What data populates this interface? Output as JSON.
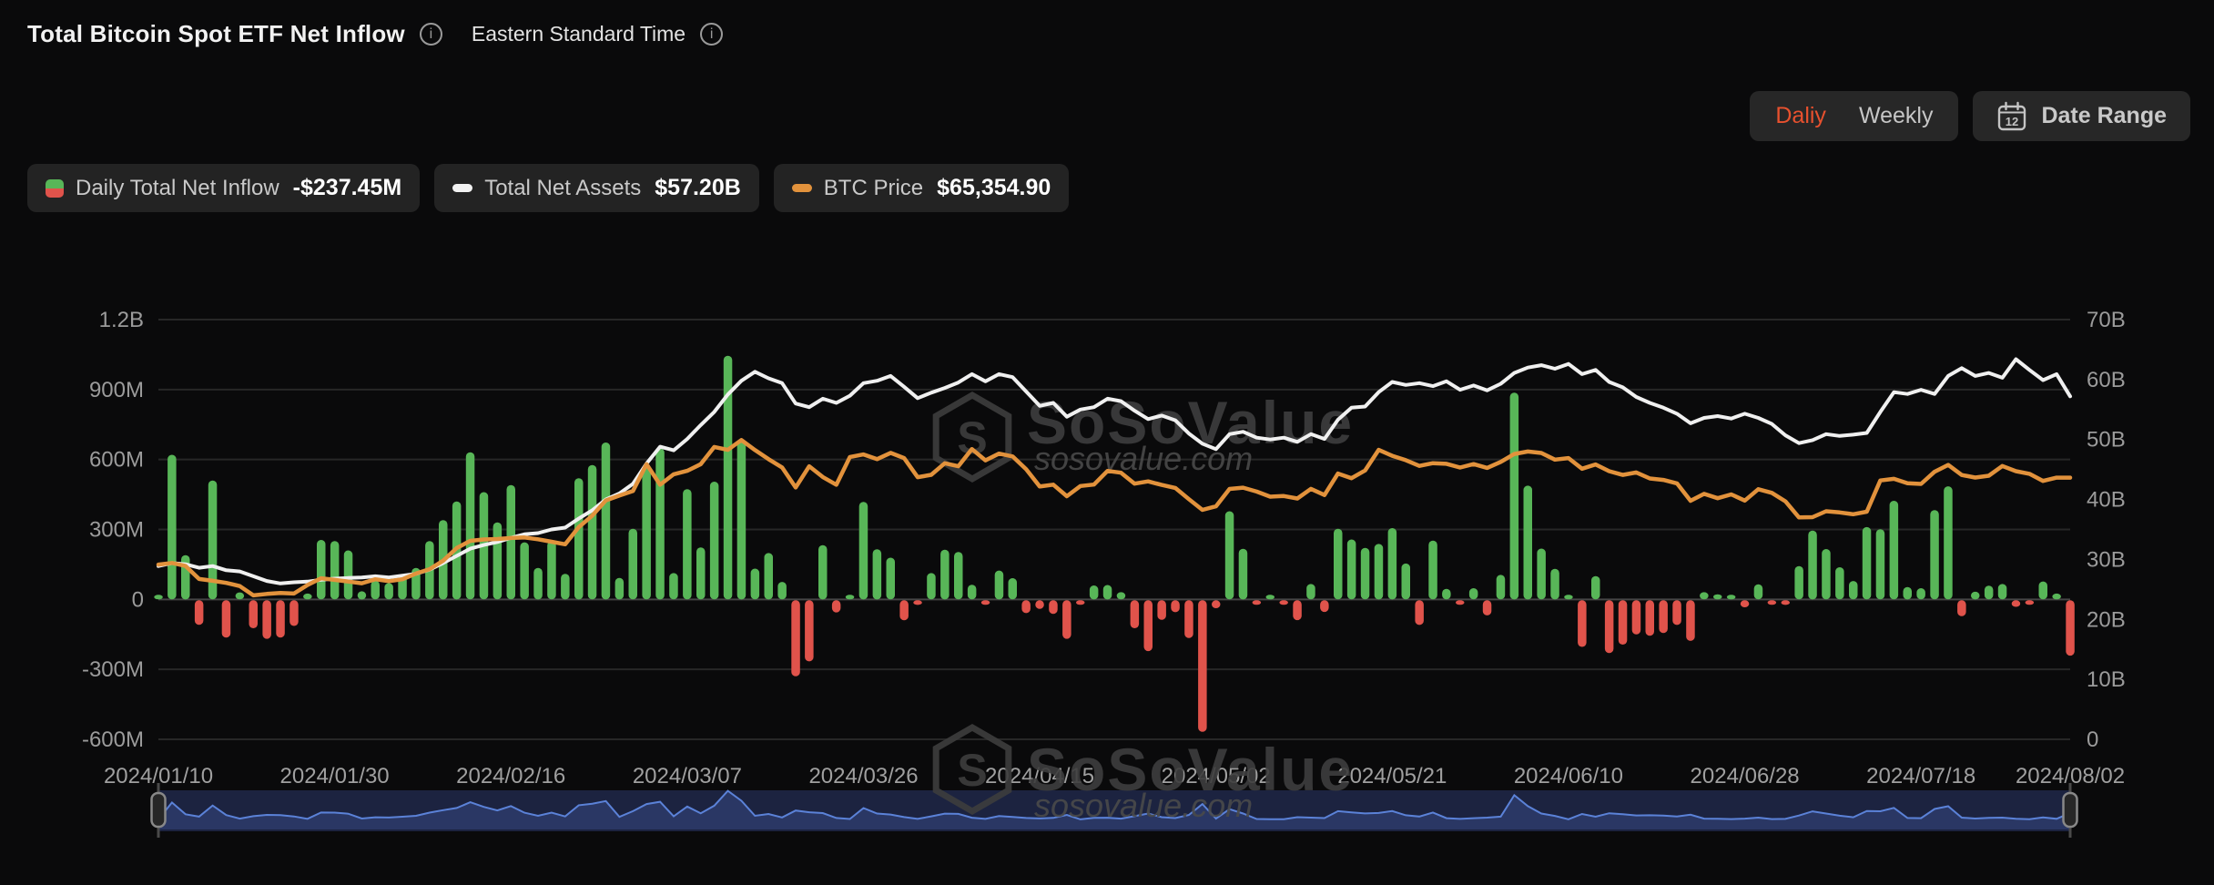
{
  "header": {
    "title": "Total Bitcoin Spot ETF Net Inflow",
    "timezone": "Eastern Standard Time"
  },
  "controls": {
    "daily_label": "Daliy",
    "weekly_label": "Weekly",
    "date_range_label": "Date Range",
    "calendar_day": "12",
    "active_color": "#e8512e"
  },
  "legend": [
    {
      "label": "Daily Total Net Inflow",
      "value": "-$237.45M",
      "icon": "green-red-square-icon"
    },
    {
      "label": "Total Net Assets",
      "value": "$57.20B",
      "icon": "white-dash-icon"
    },
    {
      "label": "BTC Price",
      "value": "$65,354.90",
      "icon": "orange-dash-icon"
    }
  ],
  "watermark": {
    "name": "SoSoValue",
    "domain": "sosovalue.com"
  },
  "chart_data": {
    "type": "combo",
    "title": "Total Bitcoin Spot ETF Net Inflow",
    "x_ticks": [
      "2024/01/10",
      "2024/01/30",
      "2024/02/16",
      "2024/03/07",
      "2024/03/26",
      "2024/04/15",
      "2024/05/02",
      "2024/05/21",
      "2024/06/10",
      "2024/06/28",
      "2024/07/18",
      "2024/08/02"
    ],
    "left_axis": {
      "unit": "USD",
      "ticks": [
        "1.2B",
        "900M",
        "600M",
        "300M",
        "0",
        "-300M",
        "-600M"
      ],
      "max_m": 1200,
      "min_m": -600,
      "grid": true
    },
    "right_axis": {
      "unit": "USD",
      "ticks": [
        "70B",
        "60B",
        "50B",
        "40B",
        "30B",
        "20B",
        "10B",
        "0"
      ],
      "max_b": 70,
      "min_b": 0
    },
    "btc_hidden_axis": {
      "min": 8000,
      "max": 100000
    },
    "colors": {
      "bar_positive": "#58b658",
      "bar_negative": "#e0534b",
      "assets_line": "#f0f0f0",
      "btc_line": "#e2923c",
      "grid": "#272727",
      "zero_line": "#454545",
      "axis_text": "#9b9b9b",
      "nav_bg": "#1c2340",
      "nav_fill": "#2c3a68",
      "nav_line": "#5b82d8"
    },
    "dates": [
      "2024/01/10",
      "2024/01/11",
      "2024/01/12",
      "2024/01/16",
      "2024/01/17",
      "2024/01/18",
      "2024/01/19",
      "2024/01/22",
      "2024/01/23",
      "2024/01/24",
      "2024/01/25",
      "2024/01/26",
      "2024/01/29",
      "2024/01/30",
      "2024/01/31",
      "2024/02/01",
      "2024/02/02",
      "2024/02/05",
      "2024/02/06",
      "2024/02/07",
      "2024/02/08",
      "2024/02/09",
      "2024/02/12",
      "2024/02/13",
      "2024/02/14",
      "2024/02/15",
      "2024/02/16",
      "2024/02/20",
      "2024/02/21",
      "2024/02/22",
      "2024/02/23",
      "2024/02/26",
      "2024/02/27",
      "2024/02/28",
      "2024/02/29",
      "2024/03/01",
      "2024/03/04",
      "2024/03/05",
      "2024/03/06",
      "2024/03/07",
      "2024/03/08",
      "2024/03/11",
      "2024/03/12",
      "2024/03/13",
      "2024/03/14",
      "2024/03/15",
      "2024/03/18",
      "2024/03/19",
      "2024/03/20",
      "2024/03/21",
      "2024/03/22",
      "2024/03/25",
      "2024/03/26",
      "2024/03/27",
      "2024/03/28",
      "2024/04/01",
      "2024/04/02",
      "2024/04/03",
      "2024/04/04",
      "2024/04/05",
      "2024/04/08",
      "2024/04/09",
      "2024/04/10",
      "2024/04/11",
      "2024/04/12",
      "2024/04/15",
      "2024/04/16",
      "2024/04/17",
      "2024/04/18",
      "2024/04/19",
      "2024/04/22",
      "2024/04/23",
      "2024/04/24",
      "2024/04/25",
      "2024/04/26",
      "2024/04/29",
      "2024/04/30",
      "2024/05/01",
      "2024/05/02",
      "2024/05/03",
      "2024/05/06",
      "2024/05/07",
      "2024/05/08",
      "2024/05/09",
      "2024/05/10",
      "2024/05/13",
      "2024/05/14",
      "2024/05/15",
      "2024/05/16",
      "2024/05/17",
      "2024/05/20",
      "2024/05/21",
      "2024/05/22",
      "2024/05/23",
      "2024/05/24",
      "2024/05/28",
      "2024/05/29",
      "2024/05/30",
      "2024/05/31",
      "2024/06/03",
      "2024/06/04",
      "2024/06/05",
      "2024/06/06",
      "2024/06/07",
      "2024/06/10",
      "2024/06/11",
      "2024/06/12",
      "2024/06/13",
      "2024/06/14",
      "2024/06/17",
      "2024/06/18",
      "2024/06/20",
      "2024/06/21",
      "2024/06/24",
      "2024/06/25",
      "2024/06/26",
      "2024/06/27",
      "2024/06/28",
      "2024/07/01",
      "2024/07/02",
      "2024/07/03",
      "2024/07/05",
      "2024/07/08",
      "2024/07/09",
      "2024/07/10",
      "2024/07/11",
      "2024/07/12",
      "2024/07/15",
      "2024/07/16",
      "2024/07/17",
      "2024/07/18",
      "2024/07/19",
      "2024/07/22",
      "2024/07/23",
      "2024/07/24",
      "2024/07/25",
      "2024/07/26",
      "2024/07/29",
      "2024/07/30",
      "2024/07/31",
      "2024/08/01",
      "2024/08/02"
    ],
    "series": [
      {
        "name": "Daily Total Net Inflow",
        "type": "bar",
        "axis": "left",
        "unit": "USD millions",
        "current": "-$237.45M",
        "values": [
          0,
          620,
          190,
          -105,
          510,
          -160,
          30,
          -120,
          -165,
          -160,
          -110,
          25,
          255,
          250,
          210,
          35,
          80,
          70,
          100,
          135,
          250,
          340,
          420,
          631,
          460,
          330,
          490,
          245,
          135,
          250,
          110,
          520,
          576,
          673,
          92,
          303,
          562,
          648,
          113,
          473,
          223,
          505,
          1045,
          684,
          132,
          199,
          75,
          -326,
          -262,
          233,
          -52,
          15,
          418,
          215,
          179,
          -86,
          -20,
          113,
          213,
          203,
          63,
          -19,
          124,
          91,
          -55,
          -37,
          -58,
          -165,
          -4,
          60,
          62,
          31,
          -120,
          -218,
          -84,
          -51,
          -162,
          -564,
          -34,
          378,
          217,
          -16,
          11,
          -11,
          -85,
          66,
          -50,
          303,
          257,
          221,
          238,
          306,
          154,
          -106,
          252,
          45,
          -19,
          48,
          -65,
          105,
          887,
          488,
          218,
          131,
          6,
          -200,
          100,
          -226,
          -190,
          -146,
          -152,
          -140,
          -106,
          -174,
          31,
          22,
          12,
          -30,
          65,
          -12,
          -20,
          143,
          295,
          216,
          138,
          79,
          310,
          301,
          423,
          53,
          48,
          383,
          485,
          -68,
          33,
          59,
          66,
          -28,
          -10,
          77,
          25,
          -237.45
        ]
      },
      {
        "name": "Total Net Assets",
        "type": "line",
        "axis": "right",
        "unit": "USD billions",
        "current": "$57.20B",
        "values": [
          28.9,
          29.4,
          29.2,
          28.6,
          28.9,
          28.2,
          28.0,
          27.2,
          26.4,
          26.0,
          26.2,
          26.3,
          26.6,
          26.8,
          26.9,
          27.0,
          27.2,
          27.0,
          27.3,
          27.6,
          28.3,
          29.4,
          30.6,
          31.8,
          32.4,
          32.9,
          33.6,
          34.2,
          34.4,
          35.0,
          35.3,
          36.8,
          38.2,
          40.0,
          41.0,
          42.6,
          46.0,
          48.8,
          48.2,
          50.1,
          52.4,
          54.6,
          57.5,
          59.8,
          61.3,
          60.2,
          59.4,
          56.0,
          55.4,
          56.8,
          56.1,
          57.3,
          59.4,
          59.8,
          60.6,
          58.8,
          56.9,
          57.8,
          58.6,
          59.5,
          60.9,
          59.7,
          60.9,
          60.4,
          58.0,
          55.6,
          56.1,
          53.8,
          55.0,
          55.4,
          56.8,
          56.4,
          54.8,
          53.4,
          54.0,
          53.2,
          51.0,
          49.3,
          48.4,
          50.9,
          51.3,
          50.3,
          50.0,
          50.3,
          49.6,
          50.9,
          50.1,
          53.3,
          55.3,
          55.5,
          57.9,
          59.6,
          59.1,
          59.4,
          58.9,
          59.7,
          58.3,
          59.0,
          58.2,
          59.3,
          61.1,
          62.0,
          62.4,
          61.8,
          62.6,
          60.9,
          61.6,
          59.6,
          58.7,
          57.1,
          56.1,
          55.3,
          54.3,
          52.7,
          53.6,
          53.9,
          53.5,
          54.3,
          53.6,
          52.6,
          50.7,
          49.4,
          49.9,
          50.9,
          50.6,
          50.8,
          51.1,
          54.6,
          57.9,
          57.6,
          58.3,
          57.6,
          60.6,
          61.9,
          60.6,
          61.1,
          60.3,
          63.4,
          61.6,
          59.9,
          60.9,
          57.2
        ]
      },
      {
        "name": "BTC Price",
        "type": "line",
        "axis": "hidden",
        "unit": "USD",
        "current": "$65,354.90",
        "values": [
          46300,
          46650,
          46000,
          43150,
          42750,
          42280,
          41580,
          39560,
          39880,
          40080,
          39950,
          41820,
          43300,
          42940,
          42580,
          42210,
          43080,
          42660,
          43090,
          44350,
          45300,
          47150,
          49920,
          51500,
          51800,
          51900,
          52120,
          52250,
          51840,
          51300,
          50750,
          54500,
          57040,
          60360,
          61450,
          62440,
          68300,
          63800,
          66100,
          66850,
          68300,
          72080,
          71450,
          73600,
          71400,
          69400,
          67600,
          63200,
          67850,
          65500,
          63800,
          69880,
          70450,
          69400,
          70780,
          69650,
          65460,
          65980,
          68510,
          67840,
          71630,
          69140,
          70630,
          70010,
          67190,
          63420,
          63810,
          61280,
          63510,
          63840,
          66840,
          66430,
          64030,
          64530,
          63750,
          63110,
          60640,
          58300,
          59060,
          62890,
          63160,
          62310,
          61190,
          61320,
          60790,
          62900,
          61550,
          66250,
          65230,
          66940,
          71440,
          70150,
          69180,
          67930,
          68530,
          68380,
          67580,
          68330,
          67490,
          68810,
          70540,
          71080,
          70760,
          69310,
          69640,
          67310,
          68240,
          66770,
          65950,
          66500,
          65170,
          64860,
          64100,
          60280,
          61800,
          60850,
          61680,
          60320,
          62830,
          62030,
          60170,
          56640,
          56700,
          58000,
          57740,
          57340,
          57900,
          64740,
          65100,
          64120,
          63970,
          66660,
          68150,
          65930,
          65370,
          65780,
          67910,
          66780,
          66190,
          64630,
          65350,
          65354.9
        ]
      }
    ]
  }
}
